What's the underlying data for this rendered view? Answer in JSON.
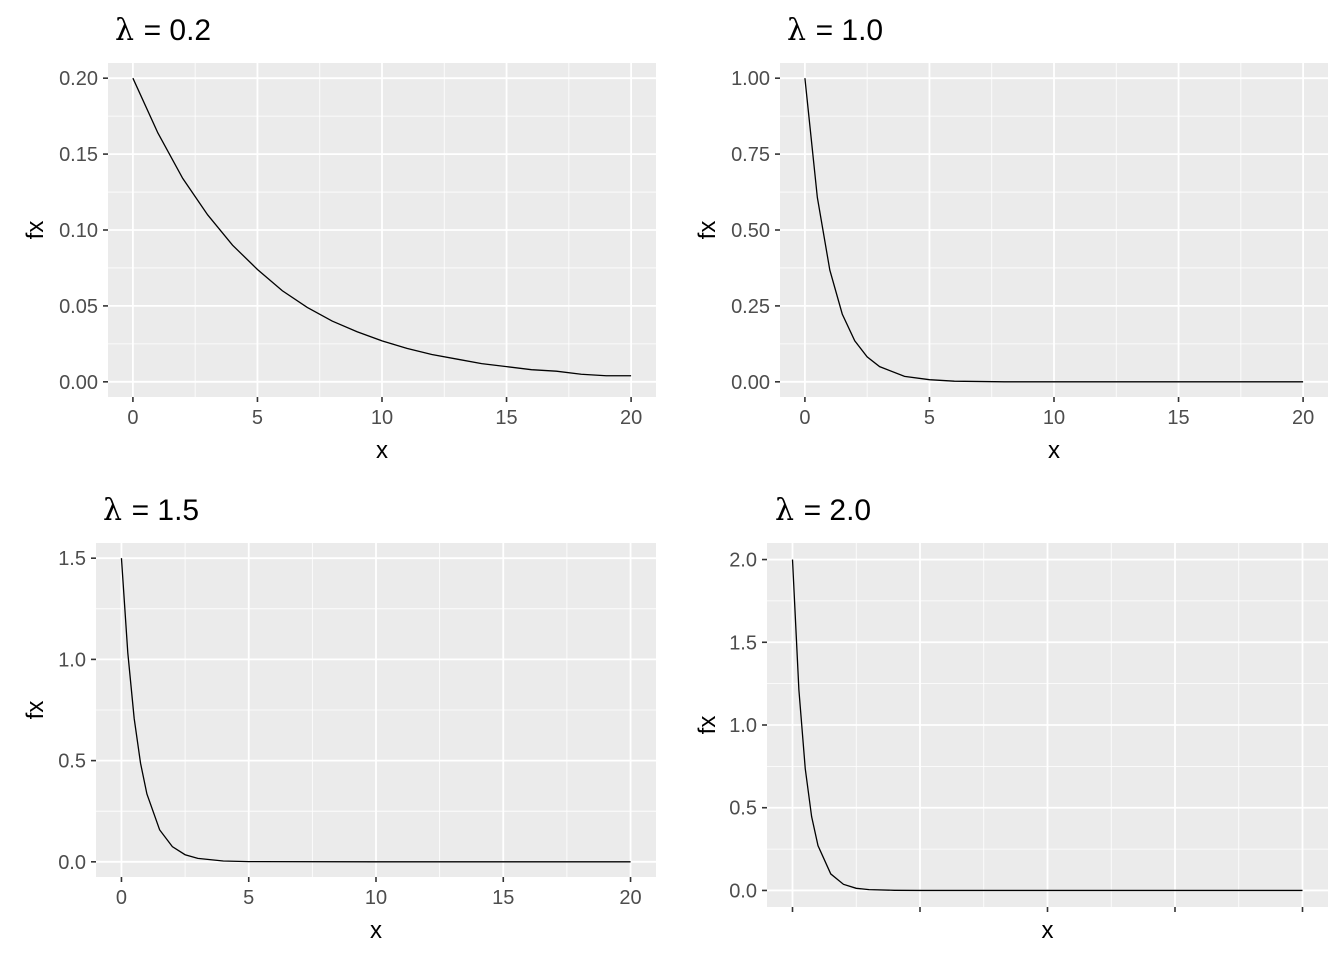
{
  "chart_data": [
    {
      "type": "line",
      "title_symbol": "λ",
      "title_text": " = 0.2",
      "lambda": 0.2,
      "xlabel": "x",
      "ylabel": "fx",
      "xlim": [
        0,
        20
      ],
      "ylim": [
        0,
        0.2
      ],
      "x_ticks": [
        0,
        5,
        10,
        15,
        20
      ],
      "x_tick_labels": [
        "0",
        "5",
        "10",
        "15",
        "20"
      ],
      "y_ticks": [
        0,
        0.05,
        0.1,
        0.15,
        0.2
      ],
      "y_tick_labels": [
        "0.00",
        "0.05",
        "0.10",
        "0.15",
        "0.20"
      ],
      "series": [
        {
          "x": [
            0,
            1,
            2,
            3,
            4,
            5,
            6,
            7,
            8,
            9,
            10,
            11,
            12,
            13,
            14,
            15,
            16,
            17,
            18,
            19,
            20
          ],
          "y": [
            0.2,
            0.164,
            0.134,
            0.11,
            0.09,
            0.074,
            0.06,
            0.049,
            0.04,
            0.033,
            0.027,
            0.022,
            0.018,
            0.015,
            0.012,
            0.01,
            0.008,
            0.007,
            0.005,
            0.004,
            0.004
          ]
        }
      ],
      "grid": true
    },
    {
      "type": "line",
      "title_symbol": "λ",
      "title_text": " = 1.0",
      "lambda": 1.0,
      "xlabel": "x",
      "ylabel": "fx",
      "xlim": [
        0,
        20
      ],
      "ylim": [
        0,
        1.0
      ],
      "x_ticks": [
        0,
        5,
        10,
        15,
        20
      ],
      "x_tick_labels": [
        "0",
        "5",
        "10",
        "15",
        "20"
      ],
      "y_ticks": [
        0,
        0.25,
        0.5,
        0.75,
        1.0
      ],
      "y_tick_labels": [
        "0.00",
        "0.25",
        "0.50",
        "0.75",
        "1.00"
      ],
      "series": [
        {
          "x": [
            0,
            0.5,
            1,
            1.5,
            2,
            2.5,
            3,
            4,
            5,
            6,
            8,
            10,
            15,
            20
          ],
          "y": [
            1.0,
            0.607,
            0.368,
            0.223,
            0.135,
            0.082,
            0.05,
            0.018,
            0.007,
            0.002,
            0.0,
            0.0,
            0.0,
            0.0
          ]
        }
      ],
      "grid": true
    },
    {
      "type": "line",
      "title_symbol": "λ",
      "title_text": " = 1.5",
      "lambda": 1.5,
      "xlabel": "x",
      "ylabel": "fx",
      "xlim": [
        0,
        20
      ],
      "ylim": [
        0,
        1.5
      ],
      "x_ticks": [
        0,
        5,
        10,
        15,
        20
      ],
      "x_tick_labels": [
        "0",
        "5",
        "10",
        "15",
        "20"
      ],
      "y_ticks": [
        0,
        0.5,
        1.0,
        1.5
      ],
      "y_tick_labels": [
        "0.0",
        "0.5",
        "1.0",
        "1.5"
      ],
      "series": [
        {
          "x": [
            0,
            0.25,
            0.5,
            0.75,
            1,
            1.5,
            2,
            2.5,
            3,
            4,
            5,
            10,
            15,
            20
          ],
          "y": [
            1.5,
            1.031,
            0.708,
            0.487,
            0.335,
            0.158,
            0.075,
            0.035,
            0.017,
            0.004,
            0.001,
            0.0,
            0.0,
            0.0
          ]
        }
      ],
      "grid": true
    },
    {
      "type": "line",
      "title_symbol": "λ",
      "title_text": " = 2.0",
      "lambda": 2.0,
      "xlabel": "x",
      "ylabel": "fx",
      "xlim": [
        0,
        20
      ],
      "ylim": [
        0,
        2.0
      ],
      "x_ticks": [
        0,
        5,
        10,
        15,
        20
      ],
      "x_tick_labels": [
        "",
        "",
        "",
        "",
        ""
      ],
      "y_ticks": [
        0,
        0.5,
        1.0,
        1.5,
        2.0
      ],
      "y_tick_labels": [
        "0.0",
        "0.5",
        "1.0",
        "1.5",
        "2.0"
      ],
      "series": [
        {
          "x": [
            0,
            0.25,
            0.5,
            0.75,
            1,
            1.5,
            2,
            2.5,
            3,
            4,
            5,
            10,
            15,
            20
          ],
          "y": [
            2.0,
            1.213,
            0.736,
            0.446,
            0.271,
            0.1,
            0.037,
            0.013,
            0.005,
            0.001,
            0.0,
            0.0,
            0.0,
            0.0
          ]
        }
      ],
      "grid": true
    }
  ]
}
